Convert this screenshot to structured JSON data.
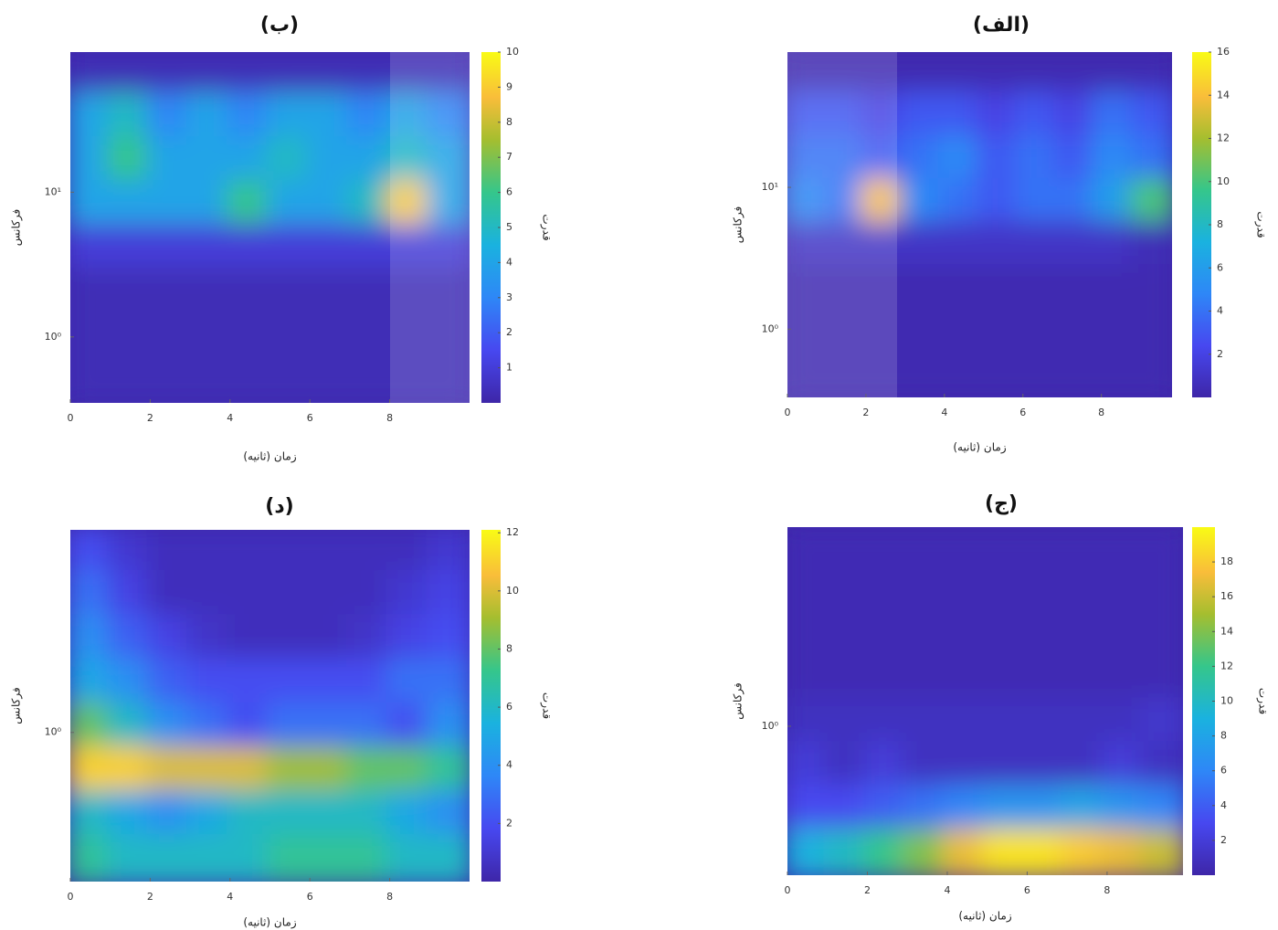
{
  "chart_data": [
    {
      "type": "heatmap",
      "title": "(الف)",
      "xlabel": "زمان (ثانیه)",
      "ylabel": "فرکانس",
      "colorbar_label": "قدرت",
      "xlim": [
        0,
        9.8
      ],
      "xticks": [
        0,
        2,
        4,
        6,
        8
      ],
      "yscale": "log",
      "ylim": [
        0.33,
        90
      ],
      "yticks": [
        {
          "value": 1,
          "label": "10⁰"
        },
        {
          "value": 10,
          "label": "10¹"
        }
      ],
      "clim": [
        0,
        16
      ],
      "cticks": [
        2,
        4,
        6,
        8,
        10,
        12,
        14,
        16
      ],
      "z": [
        [
          0.3,
          0.3,
          0.3,
          0.3,
          0.3,
          0.3,
          0.3,
          0.3,
          0.3,
          0.3
        ],
        [
          3,
          3,
          2,
          3,
          3,
          2,
          3,
          2,
          4,
          3
        ],
        [
          4,
          4,
          3,
          4,
          5,
          3,
          4,
          3,
          5,
          4
        ],
        [
          5,
          4,
          14,
          5,
          4,
          3,
          4,
          4,
          6,
          10
        ],
        [
          1,
          1,
          1,
          1,
          1,
          1,
          1,
          1,
          1,
          0.5
        ],
        [
          0.3,
          0.3,
          0.3,
          0.3,
          0.3,
          0.3,
          0.3,
          0.3,
          0.3,
          0.3
        ],
        [
          0.3,
          0.3,
          0.3,
          0.3,
          0.3,
          0.3,
          0.3,
          0.3,
          0.3,
          0.3
        ],
        [
          0.3,
          0.3,
          0.3,
          0.3,
          0.3,
          0.3,
          0.3,
          0.3,
          0.3,
          0.3
        ]
      ]
    },
    {
      "type": "heatmap",
      "title": "(ب)",
      "xlabel": "زمان (ثانیه)",
      "ylabel": "فرکانس",
      "colorbar_label": "قدرت",
      "xlim": [
        0,
        10
      ],
      "xticks": [
        0,
        2,
        4,
        6,
        8
      ],
      "yscale": "log",
      "ylim": [
        0.35,
        93
      ],
      "yticks": [
        {
          "value": 1,
          "label": "10⁰"
        },
        {
          "value": 10,
          "label": "10¹"
        }
      ],
      "clim": [
        0,
        10
      ],
      "cticks": [
        1,
        2,
        3,
        4,
        5,
        6,
        7,
        8,
        9,
        10
      ],
      "z": [
        [
          0.3,
          0.3,
          0.3,
          0.3,
          0.3,
          0.3,
          0.3,
          0.3,
          0.3,
          0.3
        ],
        [
          4,
          5,
          3,
          4,
          3,
          4,
          4,
          3,
          4,
          3
        ],
        [
          4,
          6,
          4,
          4,
          4,
          5,
          4,
          4,
          5,
          4
        ],
        [
          4,
          4,
          4,
          4,
          6,
          4,
          4,
          5,
          9,
          4
        ],
        [
          1,
          1,
          1,
          1,
          1,
          1,
          1,
          1,
          1,
          1
        ],
        [
          0.3,
          0.3,
          0.3,
          0.3,
          0.3,
          0.3,
          0.3,
          0.3,
          0.3,
          0.3
        ],
        [
          0.3,
          0.3,
          0.3,
          0.3,
          0.3,
          0.3,
          0.3,
          0.3,
          0.3,
          0.3
        ],
        [
          0.3,
          0.3,
          0.3,
          0.3,
          0.3,
          0.3,
          0.3,
          0.3,
          0.3,
          0.3
        ]
      ]
    },
    {
      "type": "heatmap",
      "title": "(ج)",
      "xlabel": "زمان (ثانیه)",
      "ylabel": "فرکانس",
      "colorbar_label": "قدرت",
      "xlim": [
        0,
        9.9
      ],
      "xticks": [
        0,
        2,
        4,
        6,
        8
      ],
      "yscale": "log",
      "ylim": [
        0.3,
        5
      ],
      "yticks": [
        {
          "value": 1,
          "label": "10⁰"
        }
      ],
      "clim": [
        0,
        20
      ],
      "cticks": [
        2,
        4,
        6,
        8,
        10,
        12,
        14,
        16,
        18
      ],
      "z": [
        [
          0.5,
          0.5,
          0.5,
          0.5,
          0.5,
          0.5,
          0.5,
          0.5,
          0.5,
          0.5
        ],
        [
          0.5,
          0.5,
          0.5,
          0.5,
          0.5,
          0.5,
          0.5,
          0.5,
          0.5,
          0.5
        ],
        [
          0.5,
          0.5,
          0.5,
          0.5,
          0.5,
          0.5,
          0.5,
          0.5,
          0.5,
          0.5
        ],
        [
          0.5,
          0.5,
          0.5,
          0.5,
          0.5,
          0.5,
          0.5,
          0.5,
          0.5,
          0.5
        ],
        [
          1,
          1,
          1,
          1,
          1,
          1,
          1,
          1,
          1,
          1.5
        ],
        [
          2,
          1,
          2,
          1,
          1,
          1,
          1,
          1,
          2,
          1
        ],
        [
          3,
          3,
          4,
          5,
          6,
          7,
          7,
          8,
          7,
          6
        ],
        [
          9,
          10,
          12,
          14,
          17,
          19,
          19,
          18,
          17,
          16
        ]
      ]
    },
    {
      "type": "heatmap",
      "title": "(د)",
      "xlabel": "زمان (ثانیه)",
      "ylabel": "فرکانس",
      "colorbar_label": "قدرت",
      "xlim": [
        0,
        10
      ],
      "xticks": [
        0,
        2,
        4,
        6,
        8
      ],
      "yscale": "log",
      "ylim": [
        0.32,
        4.7
      ],
      "yticks": [
        {
          "value": 1,
          "label": "10⁰"
        }
      ],
      "clim": [
        0,
        12.1
      ],
      "cticks": [
        2,
        4,
        6,
        8,
        10,
        12
      ],
      "z": [
        [
          2,
          1,
          0.5,
          0.5,
          0.5,
          0.5,
          0.5,
          0.5,
          0.5,
          1
        ],
        [
          3,
          1.5,
          0.5,
          0.5,
          0.5,
          0.5,
          0.5,
          0.5,
          1,
          1.5
        ],
        [
          4,
          2.5,
          1.5,
          0.8,
          0.5,
          0.5,
          0.5,
          0.8,
          1.5,
          2
        ],
        [
          5,
          4,
          2.5,
          2,
          2,
          2,
          2,
          2,
          3,
          3
        ],
        [
          8,
          6,
          4,
          3,
          2,
          3,
          3,
          3,
          2,
          4
        ],
        [
          11,
          11,
          10,
          10,
          10,
          9,
          9,
          8,
          8,
          7
        ],
        [
          6,
          5,
          4,
          5,
          6,
          6,
          6,
          6,
          5,
          4
        ],
        [
          7,
          6,
          6,
          6,
          6,
          7,
          7,
          7,
          6,
          6
        ]
      ]
    }
  ]
}
